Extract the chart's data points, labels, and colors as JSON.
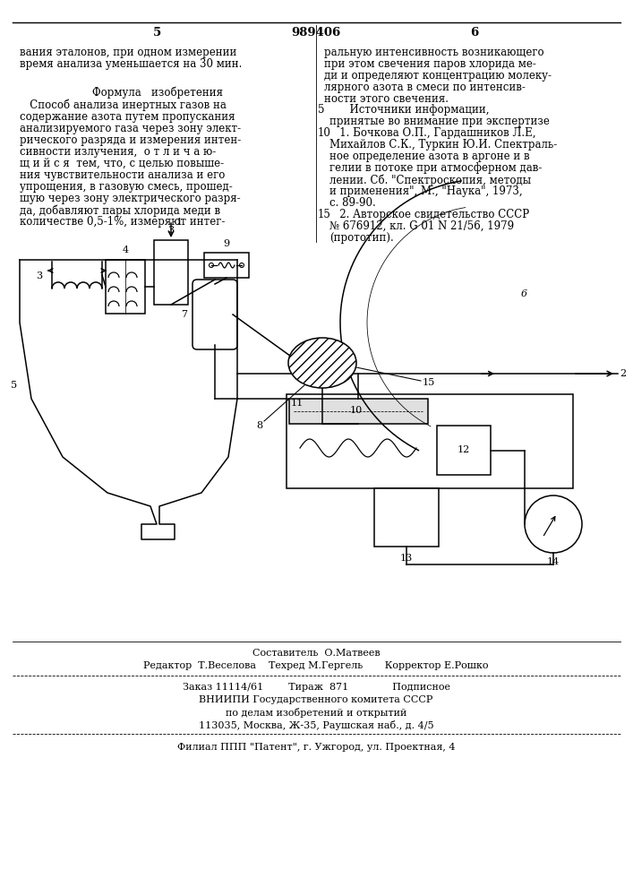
{
  "page_number_left": "5",
  "patent_number": "989406",
  "page_number_right": "6",
  "top_left_text": [
    "вания эталонов, при одном измерении",
    "время анализа уменьшается на 30 мин."
  ],
  "top_right_text": [
    "ральную интенсивность возникающего",
    "при этом свечения паров хлорида ме-",
    "ди и определяют концентрацию молеку-",
    "лярного азота в смеси по интенсив-",
    "ности этого свечения."
  ],
  "formula_heading": "Формула   изобретения",
  "formula_left_text": [
    "   Способ анализа инертных газов на",
    "содержание азота путем пропускания",
    "анализируемого газа через зону элект-",
    "рического разряда и измерения интен-",
    "сивности излучения,  о т л и ч а ю-",
    "щ и й с я  тем, что, с целью повыше-",
    "ния чувствительности анализа и его",
    "упрощения, в газовую смесь, прошед-",
    "шую через зону электрического разря-",
    "да, добавляют пары хлорида меди в",
    "количестве 0,5-1%, измеряют интег-"
  ],
  "right_col_marker_5": "5",
  "right_col_marker_10": "10",
  "right_col_marker_15": "15",
  "sources_heading": "      Источники информации,",
  "sources_subheading": "принятые во внимание при экспертизе",
  "source1": [
    "   1. Бочкова О.П., Гардашников Л.Е,",
    "Михайлов С.К., Туркин Ю.И. Спектраль-",
    "ное определение азота в аргоне и в",
    "гелии в потоке при атмосферном дав-",
    "лении. Сб. \"Спектроскопия, методы",
    "и применения\", М., \"Наука\", 1973,",
    "с. 89-90."
  ],
  "source2": [
    "   2. Авторское свидетельство СССР",
    "№ 676912, кл. G 01 N 21/56, 1979",
    "(прототип)."
  ],
  "bottom_staff_1": "Составитель  О.Матвеев",
  "bottom_staff_2": "Редактор  Т.Веселова    Техред М.Гергель       Корректор Е.Рошко",
  "order_line": "Заказ 11114/61        Тираж  871              Подписное",
  "vniip_line1": "ВНИИПИ Государственного комитета СССР",
  "vniip_line2": "по делам изобретений и открытий",
  "vniip_line3": "113035, Москва, Ж-35, Раушская наб., д. 4/5",
  "filial_line": "Филиал ППП \"Патент\", г. Ужгород, ул. Проектная, 4",
  "bg_color": "#ffffff",
  "text_color": "#000000",
  "font_size": 8.5
}
